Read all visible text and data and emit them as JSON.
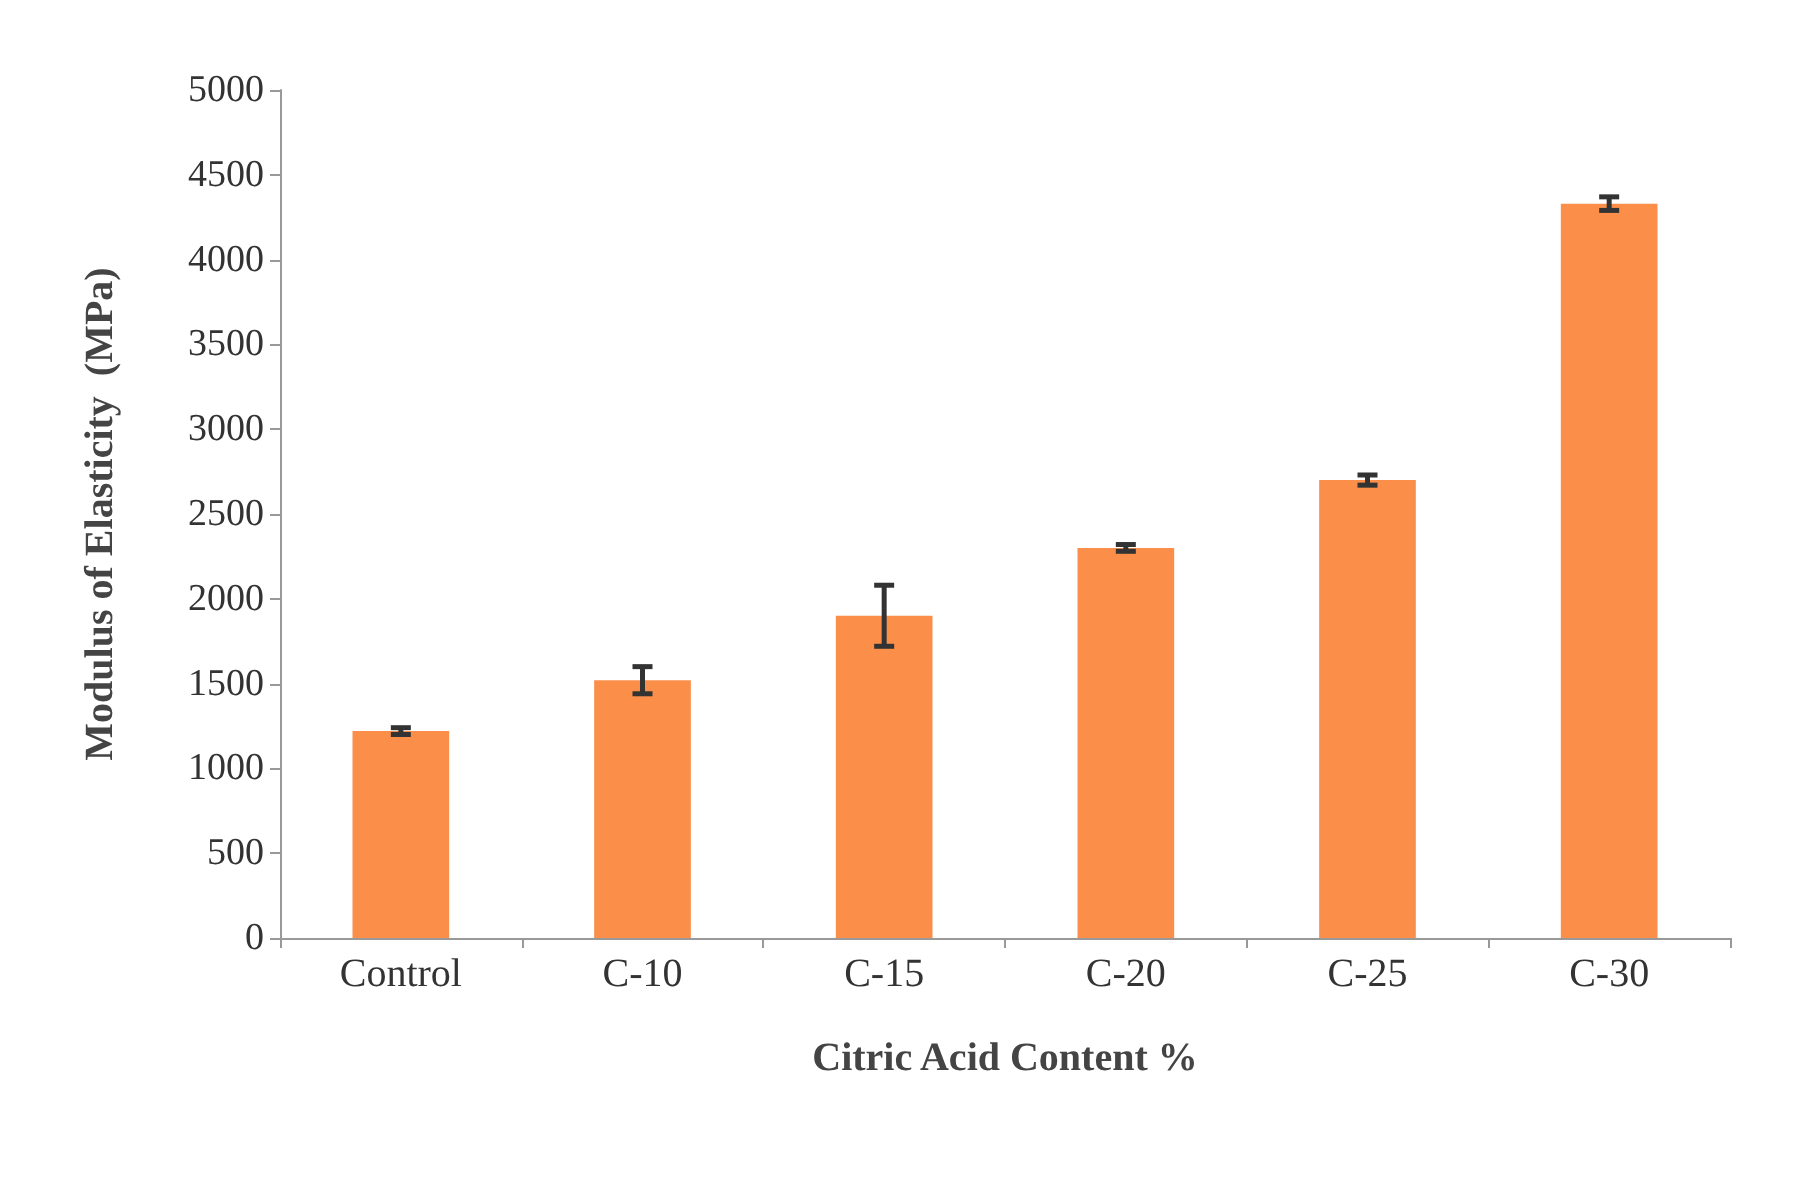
{
  "chart_data": {
    "type": "bar",
    "xlabel": "Citric Acid Content %",
    "ylabel": "Modulus of Elasticity  (MPa)",
    "categories": [
      "Control",
      "C-10",
      "C-15",
      "C-20",
      "C-25",
      "C-30"
    ],
    "values": [
      1220,
      1520,
      1900,
      2300,
      2700,
      4330
    ],
    "errors": [
      20,
      80,
      180,
      20,
      30,
      40
    ],
    "color": "#fb8e48",
    "ylim": [
      0,
      5000
    ],
    "yticks": [
      0,
      500,
      1000,
      1500,
      2000,
      2500,
      3000,
      3500,
      4000,
      4500,
      5000
    ]
  }
}
